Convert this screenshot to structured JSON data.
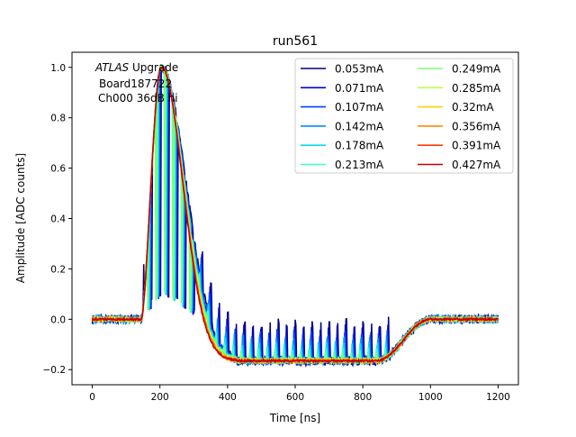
{
  "chart_data": {
    "type": "line",
    "title": "run561",
    "xlabel": "Time [ns]",
    "ylabel": "Amplitude [ADC counts]",
    "xlim": [
      -60,
      1260
    ],
    "ylim": [
      -0.26,
      1.06
    ],
    "xticks": [
      0,
      200,
      400,
      600,
      800,
      1000,
      1200
    ],
    "xtick_labels": [
      "0",
      "200",
      "400",
      "600",
      "800",
      "1000",
      "1200"
    ],
    "yticks": [
      -0.2,
      0.0,
      0.2,
      0.4,
      0.6,
      0.8,
      1.0
    ],
    "ytick_labels": [
      "−0.2",
      "0.0",
      "0.2",
      "0.4",
      "0.6",
      "0.8",
      "1.0"
    ],
    "grid": false,
    "legend_placement": "upper-right",
    "legend_columns": 2,
    "annotation": {
      "line1_italic": "ATLAS",
      "line1_rest": " Upgrade",
      "line2": "Board187722",
      "line3": "Ch000 36dB hi"
    },
    "series": [
      {
        "name": "0.053mA",
        "color": "#00007f"
      },
      {
        "name": "0.071mA",
        "color": "#0000d0"
      },
      {
        "name": "0.107mA",
        "color": "#0040ff"
      },
      {
        "name": "0.142mA",
        "color": "#0090ff"
      },
      {
        "name": "0.178mA",
        "color": "#10d8e8"
      },
      {
        "name": "0.213mA",
        "color": "#40ffb8"
      },
      {
        "name": "0.249mA",
        "color": "#7cff79"
      },
      {
        "name": "0.285mA",
        "color": "#b8ff40"
      },
      {
        "name": "0.32mA",
        "color": "#ffd200"
      },
      {
        "name": "0.356mA",
        "color": "#ff8c00"
      },
      {
        "name": "0.391mA",
        "color": "#ff3a00"
      },
      {
        "name": "0.427mA",
        "color": "#c40000"
      }
    ],
    "pulse_model": {
      "baseline": 0.0,
      "onset_ns": 145,
      "peak_ns": 205,
      "peak_value": 1.0,
      "undershoot_value": -0.165,
      "undershoot_start_ns": 430,
      "recovery_start_ns": 840,
      "recovery_end_ns": 1000,
      "end_ns": 1200
    }
  }
}
